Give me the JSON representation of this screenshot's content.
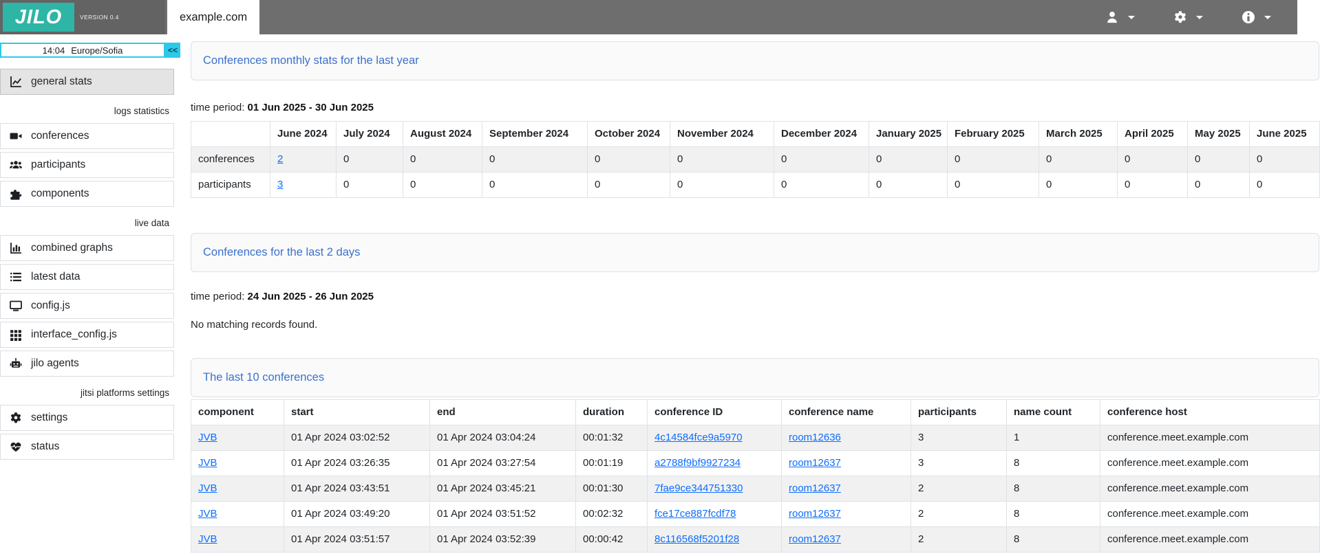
{
  "header": {
    "logo": "JILO",
    "version": "VERSION 0.4",
    "tab": "example.com",
    "menu_icons": [
      "user-icon",
      "gear-icon",
      "info-icon"
    ]
  },
  "sidebar": {
    "time": "14:04",
    "timezone": "Europe/Sofia",
    "collapse_label": "<<",
    "sections": [
      {
        "label": "",
        "items": [
          {
            "icon": "chart-line-icon",
            "label": "general stats",
            "selected": true
          }
        ]
      },
      {
        "label": "logs statistics",
        "items": [
          {
            "icon": "video-icon",
            "label": "conferences"
          },
          {
            "icon": "users-icon",
            "label": "participants"
          },
          {
            "icon": "puzzle-icon",
            "label": "components"
          }
        ]
      },
      {
        "label": "live data",
        "items": [
          {
            "icon": "chart-column-icon",
            "label": "combined graphs"
          },
          {
            "icon": "list-icon",
            "label": "latest data"
          },
          {
            "icon": "display-icon",
            "label": "config.js"
          },
          {
            "icon": "grid-icon",
            "label": "interface_config.js"
          },
          {
            "icon": "robot-icon",
            "label": "jilo agents"
          }
        ]
      },
      {
        "label": "jitsi platforms settings",
        "items": [
          {
            "icon": "gear-icon",
            "label": "settings"
          },
          {
            "icon": "heart-pulse-icon",
            "label": "status"
          }
        ]
      }
    ]
  },
  "monthly": {
    "title": "Conferences monthly stats for the last year",
    "time_period_label": "time period:",
    "time_period": "01 Jun 2025 - 30 Jun 2025",
    "columns": [
      "",
      "June 2024",
      "July 2024",
      "August 2024",
      "September 2024",
      "October 2024",
      "November 2024",
      "December 2024",
      "January 2025",
      "February 2025",
      "March 2025",
      "April 2025",
      "May 2025",
      "June 2025"
    ],
    "rows": [
      {
        "label": "conferences",
        "link_value": "2",
        "values": [
          "0",
          "0",
          "0",
          "0",
          "0",
          "0",
          "0",
          "0",
          "0",
          "0",
          "0",
          "0"
        ]
      },
      {
        "label": "participants",
        "link_value": "3",
        "values": [
          "0",
          "0",
          "0",
          "0",
          "0",
          "0",
          "0",
          "0",
          "0",
          "0",
          "0",
          "0"
        ]
      }
    ]
  },
  "last2days": {
    "title": "Conferences for the last 2 days",
    "time_period_label": "time period:",
    "time_period": "24 Jun 2025 - 26 Jun 2025",
    "empty_message": "No matching records found."
  },
  "last10": {
    "title": "The last 10 conferences",
    "columns": [
      "component",
      "start",
      "end",
      "duration",
      "conference ID",
      "conference name",
      "participants",
      "name count",
      "conference host"
    ],
    "rows": [
      [
        "JVB",
        "01 Apr 2024 03:02:52",
        "01 Apr 2024 03:04:24",
        "00:01:32",
        "4c14584fce9a5970",
        "room12636",
        "3",
        "1",
        "conference.meet.example.com"
      ],
      [
        "JVB",
        "01 Apr 2024 03:26:35",
        "01 Apr 2024 03:27:54",
        "00:01:19",
        "a2788f9bf9927234",
        "room12637",
        "3",
        "8",
        "conference.meet.example.com"
      ],
      [
        "JVB",
        "01 Apr 2024 03:43:51",
        "01 Apr 2024 03:45:21",
        "00:01:30",
        "7fae9ce344751330",
        "room12637",
        "2",
        "8",
        "conference.meet.example.com"
      ],
      [
        "JVB",
        "01 Apr 2024 03:49:20",
        "01 Apr 2024 03:51:52",
        "00:02:32",
        "fce17ce887fcdf78",
        "room12637",
        "2",
        "8",
        "conference.meet.example.com"
      ],
      [
        "JVB",
        "01 Apr 2024 03:51:57",
        "01 Apr 2024 03:52:39",
        "00:00:42",
        "8c116568f5201f28",
        "room12637",
        "2",
        "8",
        "conference.meet.example.com"
      ]
    ]
  },
  "colors": {
    "accent_teal": "#2eb5a5",
    "accent_cyan": "#2cc9e9",
    "title_blue": "#3b71ca",
    "link_blue": "#0d6efd",
    "header_gray": "#6e6e6e"
  }
}
